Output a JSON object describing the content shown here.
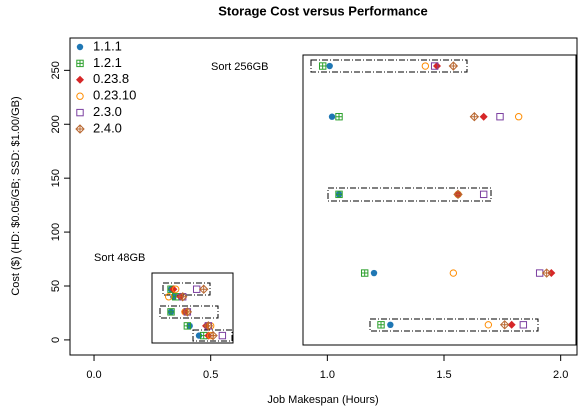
{
  "chart_data": {
    "type": "scatter",
    "title": "Storage Cost versus Performance",
    "x_label": "Job Makespan (Hours)",
    "y_label": "Cost ($) (HD: $0.05/GB; SSD: $1.00/GB)",
    "annotations": [
      "Sort 256GB",
      "Sort 48GB"
    ],
    "xlim": [
      -0.103,
      2.07
    ],
    "ylim": [
      -14,
      280
    ],
    "xticks": [
      {
        "value": 0,
        "label": "0.0"
      },
      0.5,
      {
        "value": 1,
        "label": "1.0"
      },
      1.5,
      {
        "value": 2,
        "label": "2.0"
      }
    ],
    "yticks": [
      0,
      50,
      100,
      150,
      200,
      250
    ],
    "legend": "top-left",
    "series": [
      {
        "name": "1.1.1",
        "color": "#1f77b4",
        "marker": "filled-circle",
        "x": [
          1.01,
          1.02,
          1.05,
          1.2,
          1.27,
          0.33,
          0.34,
          0.33,
          0.41,
          0.45
        ],
        "values": [
          254,
          207,
          135,
          62,
          14,
          47,
          40,
          26,
          13,
          4
        ]
      },
      {
        "name": "1.2.1",
        "color": "#2ca02c",
        "marker": "square-plus",
        "x": [
          0.98,
          1.05,
          1.05,
          1.16,
          1.23,
          0.33,
          0.35,
          0.33,
          0.4,
          0.47
        ],
        "values": [
          254,
          207,
          135,
          62,
          14,
          47,
          40,
          26,
          13,
          4
        ]
      },
      {
        "name": "0.23.8",
        "color": "#d62728",
        "marker": "filled-diamond",
        "x": [
          1.47,
          1.67,
          1.56,
          1.96,
          1.79,
          0.34,
          0.37,
          0.39,
          0.48,
          0.49
        ],
        "values": [
          254,
          207,
          135,
          62,
          14,
          47,
          40,
          26,
          13,
          4
        ]
      },
      {
        "name": "0.23.10",
        "color": "#ff8c00",
        "marker": "open-circle",
        "x": [
          1.42,
          1.82,
          1.56,
          1.54,
          1.69,
          0.35,
          0.32,
          0.39,
          0.5,
          0.5
        ],
        "values": [
          254,
          207,
          135,
          62,
          14,
          47,
          40,
          26,
          13,
          4
        ]
      },
      {
        "name": "2.3.0",
        "color": "#7b3fa0",
        "marker": "open-square",
        "x": [
          1.46,
          1.74,
          1.67,
          1.91,
          1.84,
          0.44,
          0.38,
          0.4,
          0.49,
          0.55
        ],
        "values": [
          254,
          207,
          135,
          62,
          14,
          47,
          40,
          26,
          13,
          4
        ]
      },
      {
        "name": "2.4.0",
        "color": "#b8662e",
        "marker": "diamond-plus",
        "x": [
          1.54,
          1.63,
          1.56,
          1.94,
          1.76,
          0.47,
          0.38,
          0.4,
          0.49,
          0.51
        ],
        "values": [
          254,
          207,
          135,
          62,
          14,
          47,
          40,
          26,
          13,
          4
        ]
      }
    ]
  }
}
